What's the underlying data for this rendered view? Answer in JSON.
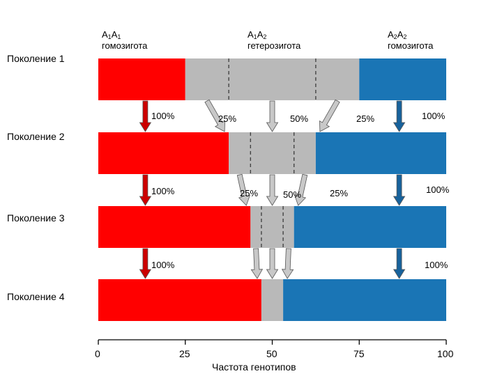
{
  "colors": {
    "homo1": "#ff0000",
    "hetero": "#b9b9b9",
    "homo2": "#1a75b5",
    "red_arrow": "#cc0000",
    "gray_arrow": "#c8c8c8",
    "blue_arrow": "#17629c",
    "divider": "#444444"
  },
  "headers": {
    "homo1": {
      "base": "A",
      "sub1": "1",
      "mid": "A",
      "sub2": "1",
      "desc": "гомозигота"
    },
    "hetero": {
      "base": "A",
      "sub1": "1",
      "mid": "A",
      "sub2": "2",
      "desc": "гетерозигота"
    },
    "homo2": {
      "base": "A",
      "sub1": "2",
      "mid": "A",
      "sub2": "2",
      "desc": "гомозигота"
    }
  },
  "generations": [
    {
      "label": "Поколение 1",
      "homo1": 25,
      "hetero": 50,
      "homo2": 25
    },
    {
      "label": "Поколение 2",
      "homo1": 37.5,
      "hetero": 25,
      "homo2": 37.5
    },
    {
      "label": "Поколение 3",
      "homo1": 43.75,
      "hetero": 12.5,
      "homo2": 43.75
    },
    {
      "label": "Поколение 4",
      "homo1": 46.875,
      "hetero": 6.25,
      "homo2": 46.875
    }
  ],
  "transitions": [
    {
      "left": "100%",
      "gray_left": "25%",
      "gray_mid": "50%",
      "gray_right": "25%",
      "right": "100%"
    },
    {
      "left": "100%",
      "gray_left": "25%",
      "gray_mid": "50%",
      "gray_right": "25%",
      "right": "100%"
    },
    {
      "left": "100%",
      "right": "100%"
    }
  ],
  "axis": {
    "title": "Частота генотипов",
    "ticks": [
      "0",
      "25",
      "50",
      "75",
      "100"
    ],
    "range": [
      0,
      100
    ]
  }
}
